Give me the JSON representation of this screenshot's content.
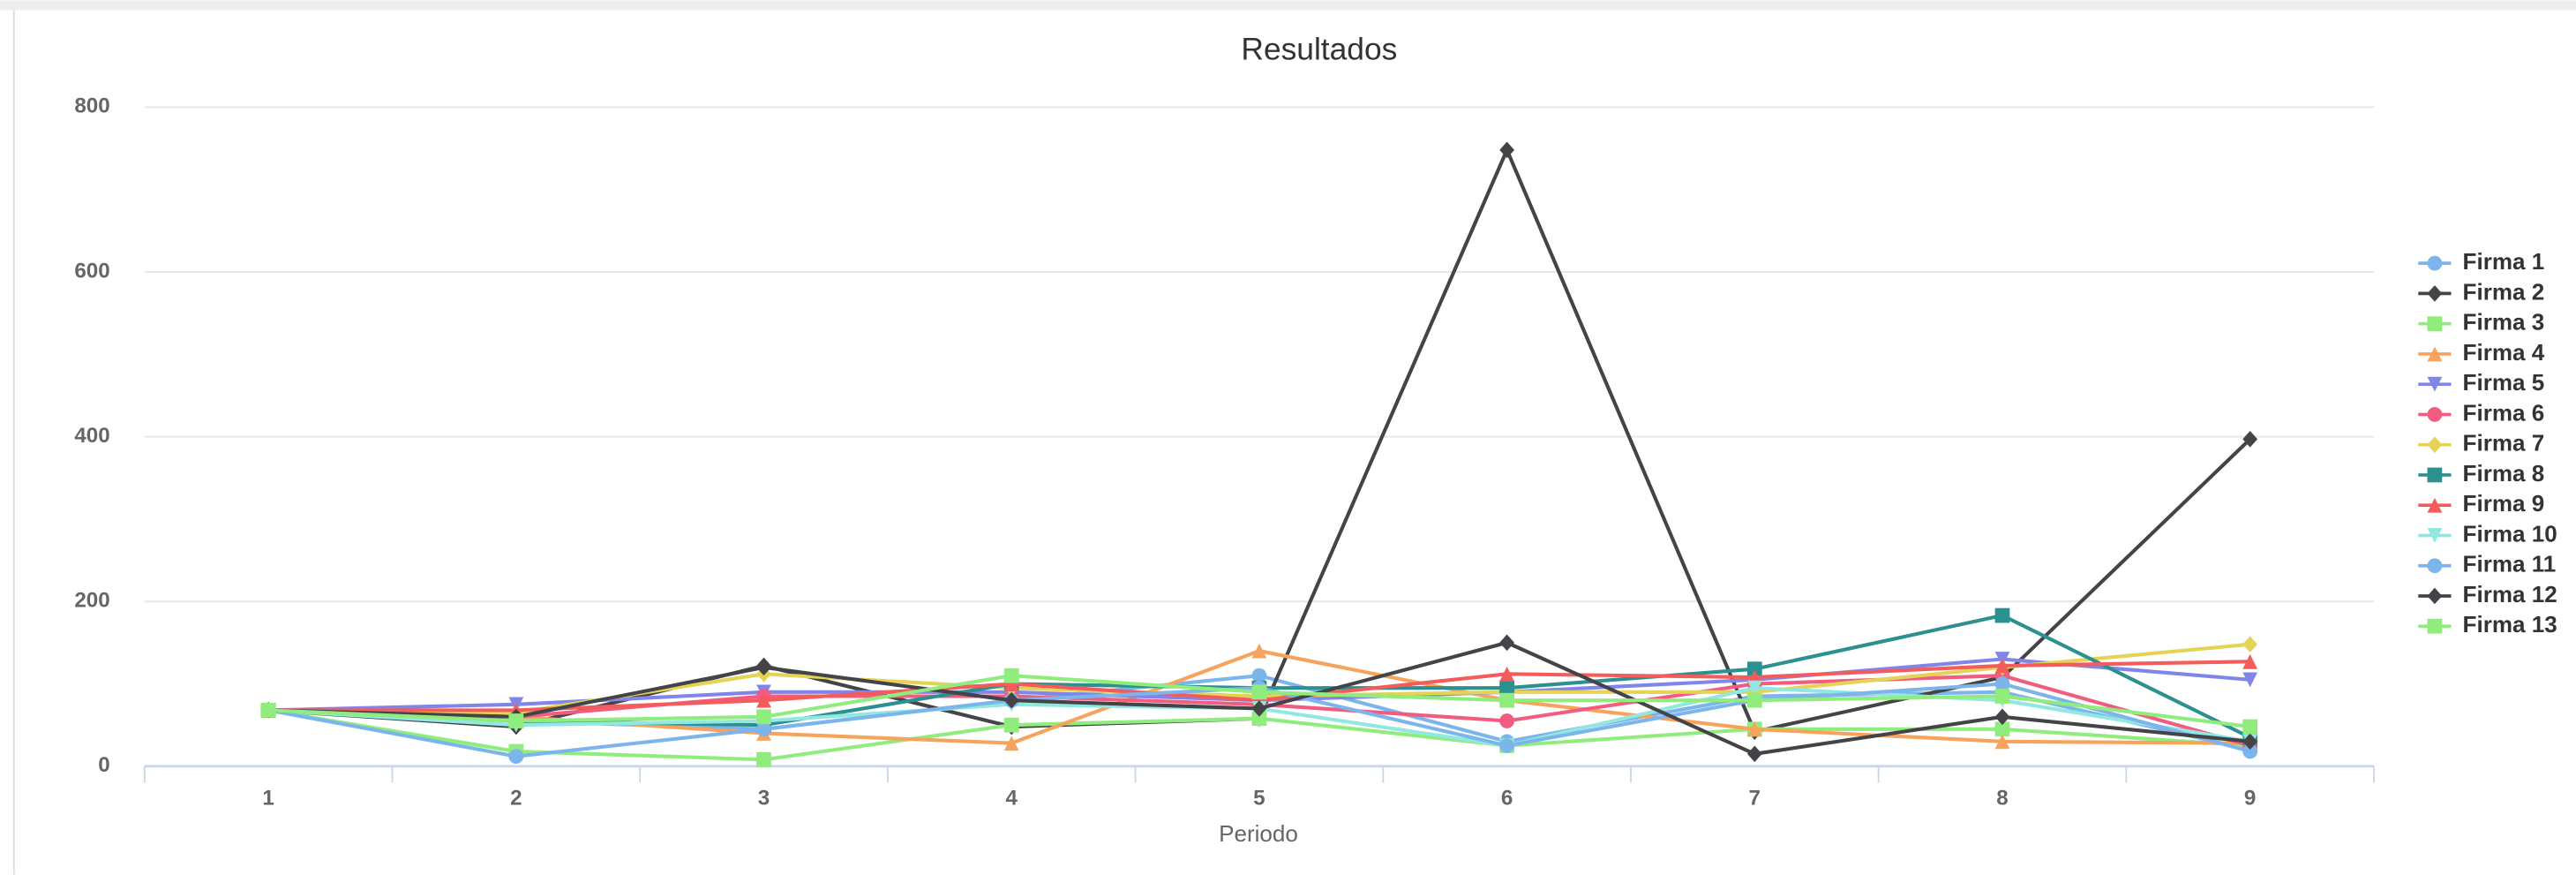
{
  "chart_data": {
    "type": "line",
    "title": "Resultados",
    "x_label": "Periodo",
    "categories": [
      "1",
      "2",
      "3",
      "4",
      "5",
      "6",
      "7",
      "8",
      "9"
    ],
    "ylim": [
      0,
      800
    ],
    "yticks": [
      0,
      200,
      400,
      600,
      800
    ],
    "grid": true,
    "legend": "right",
    "series": [
      {
        "name": "Firma 1",
        "color": "#7cb5ec",
        "marker": "circle",
        "values": [
          68,
          55,
          45,
          80,
          110,
          30,
          85,
          90,
          20
        ]
      },
      {
        "name": "Firma 2",
        "color": "#434348",
        "marker": "diamond",
        "values": [
          68,
          48,
          122,
          48,
          58,
          748,
          42,
          108,
          397
        ]
      },
      {
        "name": "Firma 3",
        "color": "#90ed7d",
        "marker": "square",
        "values": [
          68,
          18,
          8,
          50,
          58,
          25,
          45,
          45,
          25
        ]
      },
      {
        "name": "Firma 4",
        "color": "#f7a35c",
        "marker": "triangle",
        "values": [
          68,
          60,
          40,
          28,
          140,
          80,
          45,
          30,
          28
        ]
      },
      {
        "name": "Firma 5",
        "color": "#8085e9",
        "marker": "triangle-down",
        "values": [
          68,
          75,
          90,
          90,
          80,
          90,
          105,
          130,
          105
        ]
      },
      {
        "name": "Firma 6",
        "color": "#f15c80",
        "marker": "circle",
        "values": [
          68,
          60,
          85,
          85,
          75,
          55,
          100,
          110,
          25
        ]
      },
      {
        "name": "Firma 7",
        "color": "#e4d354",
        "marker": "diamond",
        "values": [
          68,
          65,
          112,
          95,
          85,
          90,
          90,
          120,
          148
        ]
      },
      {
        "name": "Firma 8",
        "color": "#2b908f",
        "marker": "square",
        "values": [
          68,
          55,
          50,
          100,
          95,
          95,
          118,
          183,
          35
        ]
      },
      {
        "name": "Firma 9",
        "color": "#f45b5b",
        "marker": "triangle",
        "values": [
          68,
          68,
          80,
          100,
          80,
          112,
          108,
          122,
          127
        ]
      },
      {
        "name": "Firma 10",
        "color": "#91e8e1",
        "marker": "triangle-down",
        "values": [
          68,
          50,
          55,
          75,
          70,
          25,
          95,
          80,
          30
        ]
      },
      {
        "name": "Firma 11",
        "color": "#7cb5ec",
        "marker": "circle",
        "values": [
          68,
          12,
          45,
          80,
          95,
          25,
          80,
          100,
          18
        ]
      },
      {
        "name": "Firma 12",
        "color": "#434348",
        "marker": "diamond",
        "values": [
          68,
          60,
          120,
          80,
          70,
          150,
          15,
          60,
          30
        ]
      },
      {
        "name": "Firma 13",
        "color": "#90ed7d",
        "marker": "square",
        "values": [
          68,
          55,
          60,
          110,
          90,
          80,
          80,
          85,
          48
        ]
      }
    ]
  }
}
